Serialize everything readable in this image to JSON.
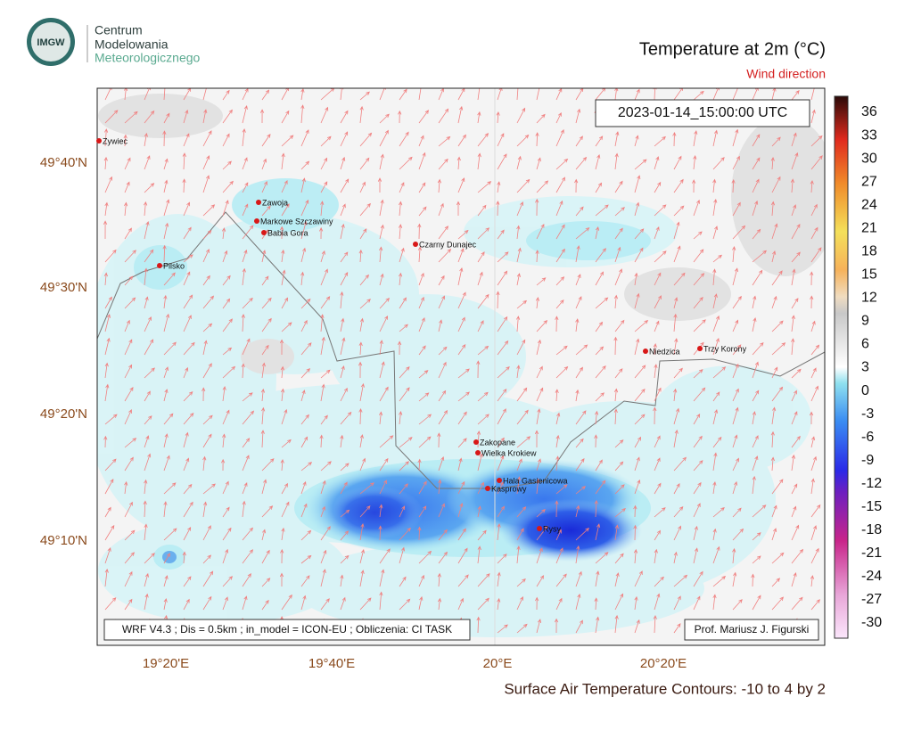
{
  "logo": {
    "badge": "IMGW",
    "line1": "Centrum",
    "line2": "Modelowania",
    "line3": "Meteorologicznego"
  },
  "title": "Temperature at 2m (°C)",
  "subtitle": "Wind direction",
  "timestamp": "2023-01-14_15:00:00 UTC",
  "lat_labels": [
    "49°40'N",
    "49°30'N",
    "49°20'N",
    "49°10'N"
  ],
  "lon_labels": [
    "19°20'E",
    "19°40'E",
    "20°E",
    "20°20'E"
  ],
  "places": [
    "Zywiec",
    "Zawoja",
    "Markowe Szczawiny",
    "Babia Gora",
    "Czarny Dunajec",
    "Pilsko",
    "Niedzica",
    "Trzy Korony",
    "Zakopane",
    "Wielka Krokiew",
    "Hala Gasienicowa",
    "Kasprowy",
    "Rysy"
  ],
  "colorbar_ticks": [
    36,
    33,
    30,
    27,
    24,
    21,
    18,
    15,
    12,
    9,
    6,
    3,
    0,
    -3,
    -6,
    -9,
    -12,
    -15,
    -18,
    -21,
    -24,
    -27,
    -30
  ],
  "footer_left": "WRF V4.3 ; Dis = 0.5km ; in_model = ICON-EU ; Obliczenia: CI TASK",
  "footer_right": "Prof. Mariusz J. Figurski",
  "caption": "Surface Air Temperature Contours: -10 to 4 by 2"
}
